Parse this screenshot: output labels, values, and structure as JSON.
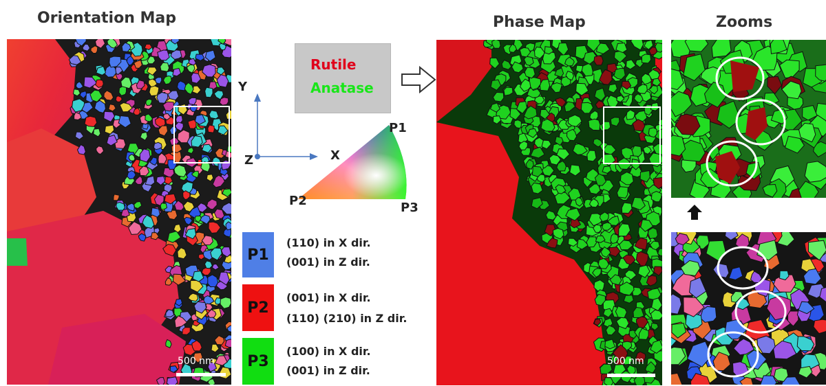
{
  "headers": {
    "orientation": "Orientation Map",
    "phase": "Phase Map",
    "zooms": "Zooms"
  },
  "scale_bars": {
    "orientation": "500 nm",
    "phase": "500 nm"
  },
  "phase_legend": {
    "rutile": "Rutile",
    "anatase": "Anatase",
    "rutile_color": "#e0001b",
    "anatase_color": "#19e619"
  },
  "axes": {
    "y": "Y",
    "x": "X",
    "z": "Z"
  },
  "triangle": {
    "p1": "P1",
    "p2": "P2",
    "p3": "P3"
  },
  "orientations": [
    {
      "code": "P1",
      "color": "#4f7fe6",
      "line1": "(110) in X dir.",
      "line2": "(001) in Z dir."
    },
    {
      "code": "P2",
      "color": "#ee1111",
      "line1": "(001) in X dir.",
      "line2": "(110) (210) in Z dir."
    },
    {
      "code": "P3",
      "color": "#11dd11",
      "line1": "(100) in X dir.",
      "line2": "(001) in Z dir."
    }
  ]
}
